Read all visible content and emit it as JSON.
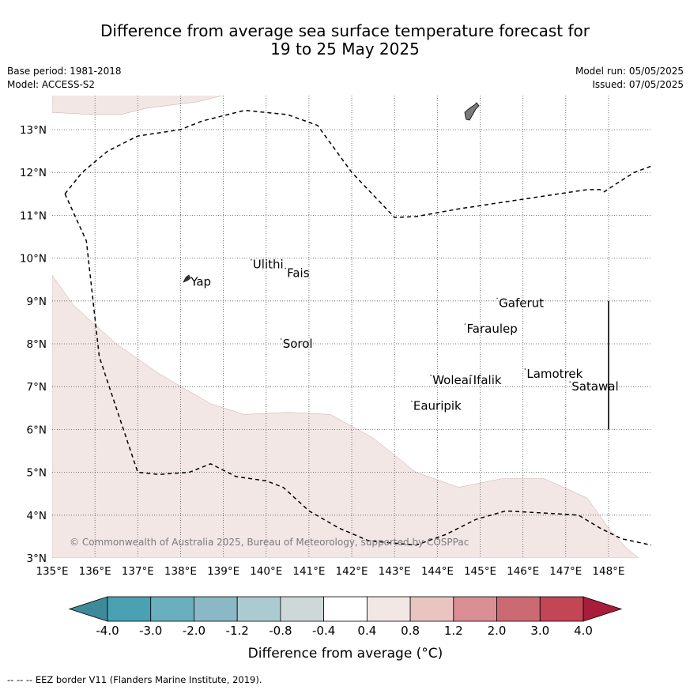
{
  "title": {
    "line1": "Difference from average sea surface temperature forecast for",
    "line2": "19 to 25 May 2025"
  },
  "meta": {
    "base_period": "Base period: 1981-2018",
    "model": "Model: ACCESS-S2",
    "model_run": "Model run: 05/05/2025",
    "issued": "Issued: 07/05/2025"
  },
  "map": {
    "lon_ticks": [
      "135°E",
      "136°E",
      "137°E",
      "138°E",
      "139°E",
      "140°E",
      "141°E",
      "142°E",
      "143°E",
      "144°E",
      "145°E",
      "146°E",
      "147°E",
      "148°E"
    ],
    "lat_ticks": [
      "3°N",
      "4°N",
      "5°N",
      "6°N",
      "7°N",
      "8°N",
      "9°N",
      "10°N",
      "11°N",
      "12°N",
      "13°N"
    ],
    "places": [
      {
        "name": "Yap",
        "lon": 138.2,
        "lat": 9.45
      },
      {
        "name": "Ulithi",
        "lon": 139.65,
        "lat": 9.85
      },
      {
        "name": "Fais",
        "lon": 140.45,
        "lat": 9.65
      },
      {
        "name": "Gaferut",
        "lon": 145.4,
        "lat": 8.95
      },
      {
        "name": "Faraulep",
        "lon": 144.65,
        "lat": 8.35
      },
      {
        "name": "Sorol",
        "lon": 140.35,
        "lat": 8.0
      },
      {
        "name": "Woleai",
        "lon": 143.85,
        "lat": 7.15
      },
      {
        "name": "Ifalik",
        "lon": 144.8,
        "lat": 7.15
      },
      {
        "name": "Lamotrek",
        "lon": 146.05,
        "lat": 7.3
      },
      {
        "name": "Satawal",
        "lon": 147.1,
        "lat": 7.0
      },
      {
        "name": "Eauripik",
        "lon": 143.4,
        "lat": 6.55
      }
    ],
    "copyright": "© Commonwealth of Australia 2025, Bureau of Meteorology, supported by COSPPac"
  },
  "colorbar": {
    "ticks": [
      "-4.0",
      "-3.0",
      "-2.0",
      "-1.2",
      "-0.8",
      "-0.4",
      "0.4",
      "0.8",
      "1.2",
      "2.0",
      "3.0",
      "4.0"
    ],
    "colors": [
      "#3d8a99",
      "#49a1b3",
      "#6aafbd",
      "#8ab8c4",
      "#abcbd0",
      "#cfd8d9",
      "#ffffff",
      "#f3e7e6",
      "#e8c5c0",
      "#d98f94",
      "#cc6a74",
      "#c24656",
      "#a81d3a"
    ],
    "label": "Difference from average (°C)"
  },
  "footnote": "--  --  -- EEZ border V11 (Flanders Marine Institute, 2019).",
  "chart_data": {
    "type": "heatmap",
    "title": "Difference from average sea surface temperature forecast for 19 to 25 May 2025",
    "xlim": [
      135,
      149
    ],
    "ylim": [
      3,
      13.8
    ],
    "colorbar_ticks": [
      -4.0,
      -3.0,
      -2.0,
      -1.2,
      -0.8,
      -0.4,
      0.4,
      0.8,
      1.2,
      2.0,
      3.0,
      4.0
    ],
    "colorbar_label": "Difference from average (°C)",
    "regions": [
      {
        "category": "0.4 to 0.8",
        "area": "north-west corner",
        "polygon": [
          [
            135,
            13.8
          ],
          [
            135,
            13.4
          ],
          [
            136.0,
            13.35
          ],
          [
            136.6,
            13.35
          ],
          [
            137.2,
            13.5
          ],
          [
            138.4,
            13.65
          ],
          [
            139.0,
            13.8
          ]
        ]
      },
      {
        "category": "0.4 to 0.8",
        "area": "south",
        "polygon": [
          [
            135,
            9.6
          ],
          [
            135.5,
            8.9
          ],
          [
            136.5,
            8.0
          ],
          [
            137.5,
            7.3
          ],
          [
            138.7,
            6.6
          ],
          [
            139.5,
            6.35
          ],
          [
            140.5,
            6.4
          ],
          [
            141.5,
            6.35
          ],
          [
            142.5,
            5.8
          ],
          [
            143.5,
            5.0
          ],
          [
            144.5,
            4.65
          ],
          [
            145.5,
            4.85
          ],
          [
            146.5,
            4.85
          ],
          [
            147.5,
            4.4
          ],
          [
            148.0,
            3.7
          ],
          [
            148.4,
            3.25
          ],
          [
            148.7,
            3.0
          ],
          [
            135,
            3.0
          ]
        ]
      }
    ],
    "eez_borders": [
      {
        "points": [
          [
            135.3,
            11.5
          ],
          [
            135.7,
            12.0
          ],
          [
            136.3,
            12.5
          ],
          [
            137.0,
            12.85
          ],
          [
            138.0,
            13.0
          ],
          [
            138.5,
            13.2
          ],
          [
            139.5,
            13.45
          ],
          [
            140.5,
            13.35
          ],
          [
            141.2,
            13.1
          ],
          [
            142.0,
            12.0
          ],
          [
            143.0,
            10.95
          ],
          [
            143.5,
            10.97
          ],
          [
            144.5,
            11.15
          ],
          [
            145.5,
            11.3
          ],
          [
            146.5,
            11.45
          ],
          [
            147.5,
            11.6
          ],
          [
            147.8,
            11.6
          ],
          [
            147.9,
            11.55
          ],
          [
            148.2,
            11.75
          ],
          [
            148.6,
            12.0
          ],
          [
            149.0,
            12.15
          ]
        ]
      },
      {
        "points": [
          [
            135.3,
            11.5
          ],
          [
            135.8,
            10.4
          ],
          [
            136.1,
            7.7
          ],
          [
            136.6,
            6.2
          ],
          [
            137.0,
            5.0
          ],
          [
            137.5,
            4.95
          ],
          [
            138.2,
            5.0
          ],
          [
            138.7,
            5.2
          ],
          [
            139.3,
            4.9
          ],
          [
            140.0,
            4.8
          ],
          [
            140.4,
            4.65
          ],
          [
            141.0,
            4.1
          ],
          [
            141.7,
            3.7
          ],
          [
            142.4,
            3.4
          ],
          [
            143.5,
            3.3
          ],
          [
            144.2,
            3.55
          ],
          [
            144.9,
            3.9
          ],
          [
            145.6,
            4.1
          ],
          [
            146.5,
            4.05
          ],
          [
            147.3,
            4.0
          ],
          [
            147.8,
            3.7
          ],
          [
            148.3,
            3.45
          ],
          [
            149.0,
            3.3
          ]
        ]
      }
    ],
    "markers": [
      {
        "lon": 148.0,
        "lat_range": [
          6.0,
          9.0
        ]
      }
    ]
  }
}
